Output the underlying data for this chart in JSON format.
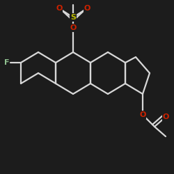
{
  "bg_color": "#1c1c1c",
  "bond_color": "#d8d8d8",
  "F_color": "#90c090",
  "O_color": "#cc2200",
  "S_color": "#bbbb00",
  "figsize": [
    2.5,
    2.5
  ],
  "dpi": 100,
  "xlim": [
    0,
    250
  ],
  "ylim": [
    0,
    250
  ]
}
